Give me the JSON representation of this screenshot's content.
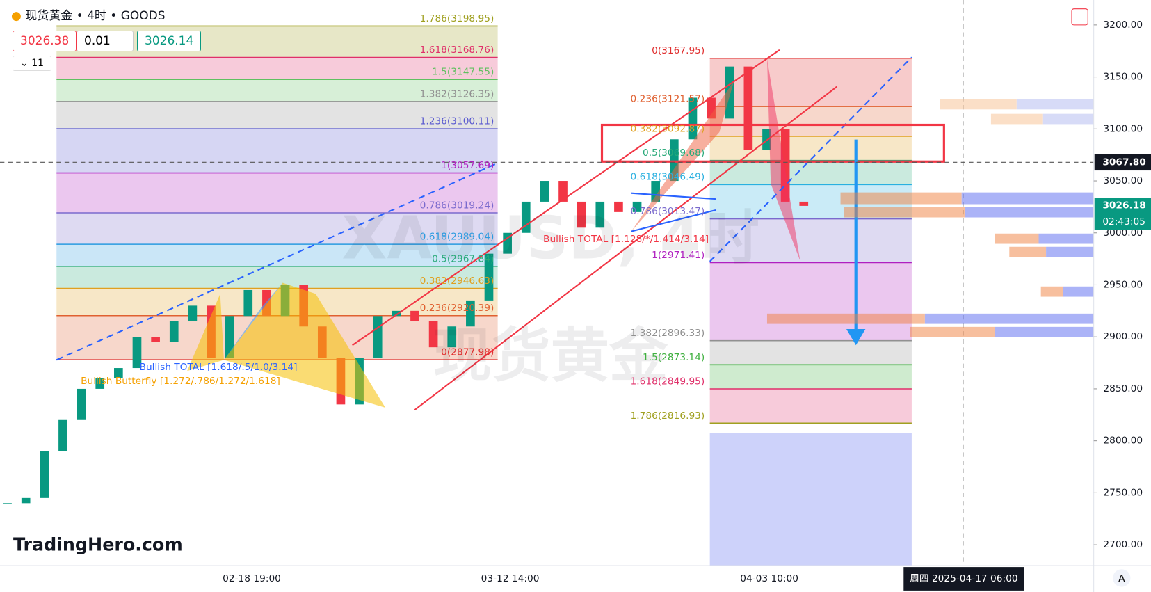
{
  "header": {
    "symbol": "现货黄金 • 4时 • GOODS",
    "bid": "3026.38",
    "qty": "0.01",
    "ask": "3026.14",
    "indicators": "11"
  },
  "chart_data": {
    "type": "candlestick",
    "watermark": "XAUUSD, 4时",
    "watermark2": "现货黄金",
    "brand": "TradingHero.com",
    "ylim": [
      2680,
      3224
    ],
    "yticks": [
      {
        "value": 2700,
        "label": "2700.00"
      },
      {
        "value": 2750,
        "label": "2750.00"
      },
      {
        "value": 2800,
        "label": "2800.00"
      },
      {
        "value": 2850,
        "label": "2850.00"
      },
      {
        "value": 2900,
        "label": "2900.00"
      },
      {
        "value": 2950,
        "label": "2950.00"
      },
      {
        "value": 3000,
        "label": "3000.00"
      },
      {
        "value": 3050,
        "label": "3050.00"
      },
      {
        "value": 3100,
        "label": "3100.00"
      },
      {
        "value": 3150,
        "label": "3150.00"
      },
      {
        "value": 3200,
        "label": "3200.00"
      }
    ],
    "xticks": [
      "02-18 19:00",
      "03-12 14:00",
      "04-03 10:00"
    ],
    "cursor_time": "周四 2025-04-17  06:00",
    "up_color": "#089981",
    "down_color": "#f23645",
    "values": [
      2740,
      2745,
      2790,
      2820,
      2850,
      2860,
      2870,
      2900,
      2895,
      2915,
      2930,
      2880,
      2920,
      2945,
      2920,
      2950,
      2910,
      2880,
      2835,
      2880,
      2920,
      2925,
      2915,
      2890,
      2910,
      2935,
      2980,
      3000,
      3030,
      3050,
      3030,
      3005,
      3030,
      3020,
      3030,
      3050,
      3090,
      3130,
      3110,
      3160,
      3080,
      3100,
      3030,
      3026
    ],
    "fibs": [
      {
        "levels": [
          {
            "value": 3198.95,
            "label": "1.786(3198.95)",
            "color": "#a0a020"
          },
          {
            "value": 3168.76,
            "label": "1.618(3168.76)",
            "color": "#e0306a"
          },
          {
            "value": 3147.55,
            "label": "1.5(3147.55)",
            "color": "#60c060"
          },
          {
            "value": 3126.35,
            "label": "1.382(3126.35)",
            "color": "#909090"
          },
          {
            "value": 3100.11,
            "label": "1.236(3100.11)",
            "color": "#5a5ad0"
          },
          {
            "value": 3057.69,
            "label": "1(3057.69)",
            "color": "#b020c0"
          },
          {
            "value": 3019.24,
            "label": "0.786(3019.24)",
            "color": "#7a6acd"
          },
          {
            "value": 2989.04,
            "label": "0.618(2989.04)",
            "color": "#2a9ae0"
          },
          {
            "value": 2967.84,
            "label": "0.5(2967.84)",
            "color": "#2aaa7a"
          },
          {
            "value": 2946.63,
            "label": "0.382(2946.63)",
            "color": "#e0a020"
          },
          {
            "value": 2920.39,
            "label": "0.236(2920.39)",
            "color": "#e06030"
          },
          {
            "value": 2877.98,
            "label": "0(2877.98)",
            "color": "#e03030"
          }
        ]
      },
      {
        "levels": [
          {
            "value": 3167.95,
            "label": "0(3167.95)",
            "color": "#e03030"
          },
          {
            "value": 3121.57,
            "label": "0.236(3121.57)",
            "color": "#e06030"
          },
          {
            "value": 3092.87,
            "label": "0.382(3092.87)",
            "color": "#e0a020"
          },
          {
            "value": 3069.68,
            "label": "0.5(3069.68)",
            "color": "#2aaa7a"
          },
          {
            "value": 3046.49,
            "label": "0.618(3046.49)",
            "color": "#2ab0e0"
          },
          {
            "value": 3013.47,
            "label": "0.786(3013.47)",
            "color": "#7a6acd"
          },
          {
            "value": 2971.41,
            "label": "1(2971.41)",
            "color": "#b020c0"
          },
          {
            "value": 2896.33,
            "label": "1.382(2896.33)",
            "color": "#909090"
          },
          {
            "value": 2873.14,
            "label": "1.5(2873.14)",
            "color": "#40b040"
          },
          {
            "value": 2849.95,
            "label": "1.618(2849.95)",
            "color": "#e0306a"
          },
          {
            "value": 2816.93,
            "label": "1.786(2816.93)",
            "color": "#a0a020"
          }
        ]
      }
    ],
    "patterns": [
      "Bullish TOTAL [1.618/.5/1.0/3.14]",
      "Bullish Butterfly [1.272/.786/1.272/1.618]",
      "Bullish TOTAL [1.128/*/1.414/3.14]"
    ],
    "price_labels": [
      {
        "value": 3067.8,
        "label": "3067.80",
        "color": "#131722"
      },
      {
        "value": 3026.18,
        "label": "3026.18",
        "color": "#089981"
      }
    ],
    "countdown": "02:43:05"
  }
}
